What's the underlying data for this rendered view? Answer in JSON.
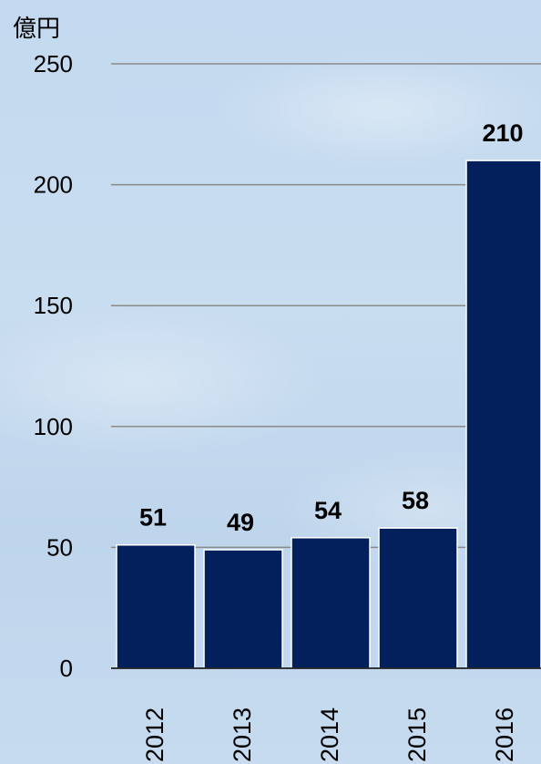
{
  "chart_data": {
    "type": "bar",
    "unit_label": "億円",
    "categories": [
      "2012",
      "2013",
      "2014",
      "2015",
      "2016"
    ],
    "values": [
      51,
      49,
      54,
      58,
      210
    ],
    "data_labels": [
      "51",
      "49",
      "54",
      "58",
      "210"
    ],
    "yticks": [
      "0",
      "50",
      "100",
      "150",
      "200",
      "250"
    ],
    "ylim": [
      0,
      250
    ],
    "grid": true,
    "bar_color": "#03205d",
    "grid_color": "#8a8a8a"
  }
}
